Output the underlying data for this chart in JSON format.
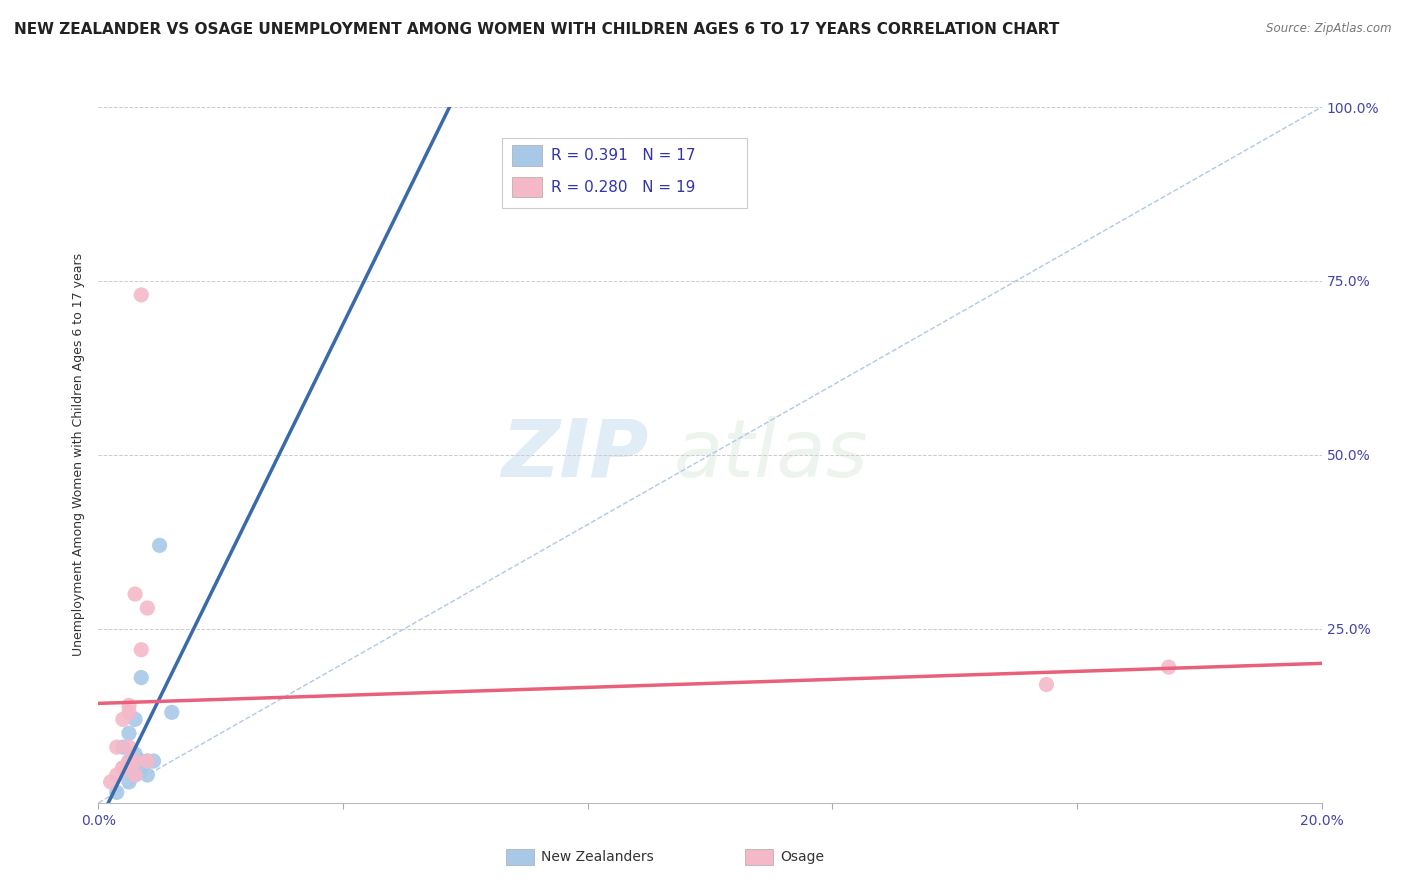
{
  "title": "NEW ZEALANDER VS OSAGE UNEMPLOYMENT AMONG WOMEN WITH CHILDREN AGES 6 TO 17 YEARS CORRELATION CHART",
  "source": "Source: ZipAtlas.com",
  "ylabel": "Unemployment Among Women with Children Ages 6 to 17 years",
  "xlim": [
    0.0,
    0.2
  ],
  "ylim": [
    0.0,
    1.0
  ],
  "xticks": [
    0.0,
    0.04,
    0.08,
    0.12,
    0.16,
    0.2
  ],
  "yticks": [
    0.0,
    0.25,
    0.5,
    0.75,
    1.0
  ],
  "xtick_labels": [
    "0.0%",
    "",
    "",
    "",
    "",
    "20.0%"
  ],
  "ytick_labels": [
    "",
    "25.0%",
    "50.0%",
    "75.0%",
    "100.0%"
  ],
  "watermark_zip": "ZIP",
  "watermark_atlas": "atlas",
  "nz_color": "#a8c8e8",
  "osage_color": "#f5b8c8",
  "nz_line_color": "#3a6aaa",
  "osage_line_color": "#e8607a",
  "diag_color": "#b0c8e8",
  "legend_r_nz": "R = 0.391",
  "legend_n_nz": "N = 17",
  "legend_r_osage": "R = 0.280",
  "legend_n_osage": "N = 19",
  "legend_label_nz": "New Zealanders",
  "legend_label_osage": "Osage",
  "nz_x": [
    0.003,
    0.004,
    0.004,
    0.005,
    0.005,
    0.005,
    0.006,
    0.006,
    0.006,
    0.007,
    0.007,
    0.007,
    0.008,
    0.008,
    0.009,
    0.01,
    0.012
  ],
  "nz_y": [
    0.015,
    0.05,
    0.08,
    0.03,
    0.06,
    0.1,
    0.04,
    0.07,
    0.12,
    0.05,
    0.06,
    0.18,
    0.04,
    0.06,
    0.06,
    0.37,
    0.13
  ],
  "osage_x": [
    0.002,
    0.003,
    0.003,
    0.004,
    0.004,
    0.004,
    0.005,
    0.005,
    0.005,
    0.005,
    0.006,
    0.006,
    0.006,
    0.007,
    0.007,
    0.008,
    0.008,
    0.155,
    0.175
  ],
  "osage_y": [
    0.03,
    0.04,
    0.08,
    0.05,
    0.12,
    0.05,
    0.06,
    0.08,
    0.13,
    0.14,
    0.06,
    0.3,
    0.04,
    0.22,
    0.73,
    0.06,
    0.28,
    0.17,
    0.195
  ],
  "title_fontsize": 11,
  "axis_label_fontsize": 9,
  "tick_fontsize": 10,
  "tick_color": "#4444aa"
}
